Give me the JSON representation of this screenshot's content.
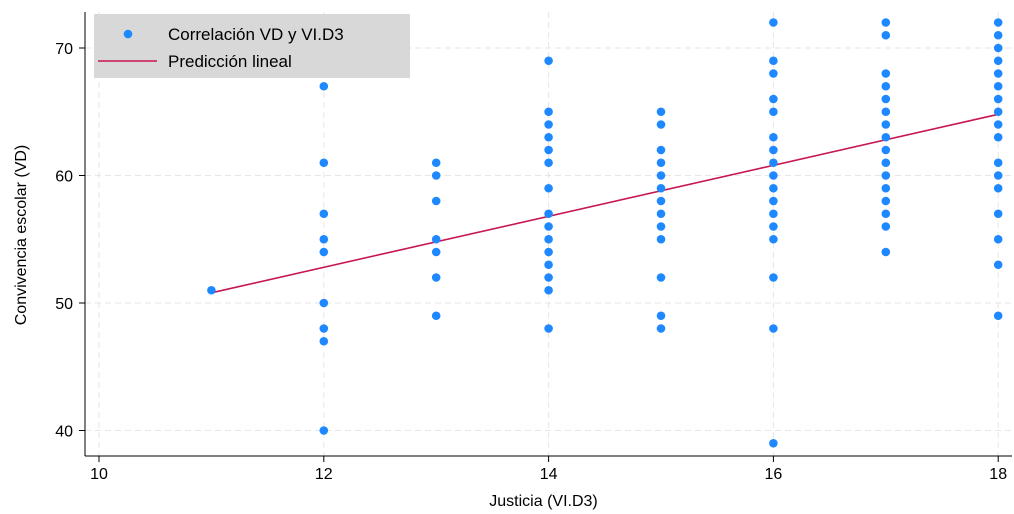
{
  "chart_data": {
    "type": "scatter",
    "xlabel": "Justicia (VI.D3)",
    "ylabel": "Convivencia escolar (VD)",
    "xlim": [
      10,
      18
    ],
    "ylim": [
      39,
      73
    ],
    "xticks": [
      10,
      12,
      14,
      16,
      18
    ],
    "yticks": [
      40,
      50,
      60,
      70
    ],
    "grid": true,
    "legend_position": "top-left",
    "series": [
      {
        "name": "Correlación VD y VI.D3",
        "kind": "scatter",
        "color": "#1e88ff",
        "points": [
          [
            11,
            51
          ],
          [
            12,
            67
          ],
          [
            12,
            61
          ],
          [
            12,
            57
          ],
          [
            12,
            55
          ],
          [
            12,
            54
          ],
          [
            12,
            50
          ],
          [
            12,
            48
          ],
          [
            12,
            47
          ],
          [
            12,
            40
          ],
          [
            13,
            61
          ],
          [
            13,
            60
          ],
          [
            13,
            58
          ],
          [
            13,
            55
          ],
          [
            13,
            54
          ],
          [
            13,
            52
          ],
          [
            13,
            49
          ],
          [
            14,
            69
          ],
          [
            14,
            65
          ],
          [
            14,
            64
          ],
          [
            14,
            63
          ],
          [
            14,
            62
          ],
          [
            14,
            61
          ],
          [
            14,
            59
          ],
          [
            14,
            57
          ],
          [
            14,
            56
          ],
          [
            14,
            55
          ],
          [
            14,
            54
          ],
          [
            14,
            53
          ],
          [
            14,
            52
          ],
          [
            14,
            51
          ],
          [
            14,
            48
          ],
          [
            15,
            65
          ],
          [
            15,
            64
          ],
          [
            15,
            62
          ],
          [
            15,
            61
          ],
          [
            15,
            60
          ],
          [
            15,
            59
          ],
          [
            15,
            58
          ],
          [
            15,
            57
          ],
          [
            15,
            56
          ],
          [
            15,
            55
          ],
          [
            15,
            52
          ],
          [
            15,
            49
          ],
          [
            15,
            48
          ],
          [
            16,
            72
          ],
          [
            16,
            69
          ],
          [
            16,
            68
          ],
          [
            16,
            66
          ],
          [
            16,
            65
          ],
          [
            16,
            63
          ],
          [
            16,
            62
          ],
          [
            16,
            61
          ],
          [
            16,
            60
          ],
          [
            16,
            59
          ],
          [
            16,
            58
          ],
          [
            16,
            57
          ],
          [
            16,
            56
          ],
          [
            16,
            55
          ],
          [
            16,
            52
          ],
          [
            16,
            48
          ],
          [
            16,
            39
          ],
          [
            17,
            72
          ],
          [
            17,
            71
          ],
          [
            17,
            68
          ],
          [
            17,
            67
          ],
          [
            17,
            66
          ],
          [
            17,
            65
          ],
          [
            17,
            64
          ],
          [
            17,
            63
          ],
          [
            17,
            62
          ],
          [
            17,
            61
          ],
          [
            17,
            60
          ],
          [
            17,
            59
          ],
          [
            17,
            58
          ],
          [
            17,
            57
          ],
          [
            17,
            56
          ],
          [
            17,
            54
          ],
          [
            18,
            72
          ],
          [
            18,
            71
          ],
          [
            18,
            70
          ],
          [
            18,
            69
          ],
          [
            18,
            68
          ],
          [
            18,
            67
          ],
          [
            18,
            66
          ],
          [
            18,
            65
          ],
          [
            18,
            64
          ],
          [
            18,
            63
          ],
          [
            18,
            61
          ],
          [
            18,
            60
          ],
          [
            18,
            59
          ],
          [
            18,
            57
          ],
          [
            18,
            55
          ],
          [
            18,
            53
          ],
          [
            18,
            49
          ]
        ]
      },
      {
        "name": "Predicción lineal",
        "kind": "line",
        "color": "#c8164f",
        "points": [
          [
            11,
            50.8
          ],
          [
            18,
            64.8
          ]
        ]
      }
    ]
  }
}
